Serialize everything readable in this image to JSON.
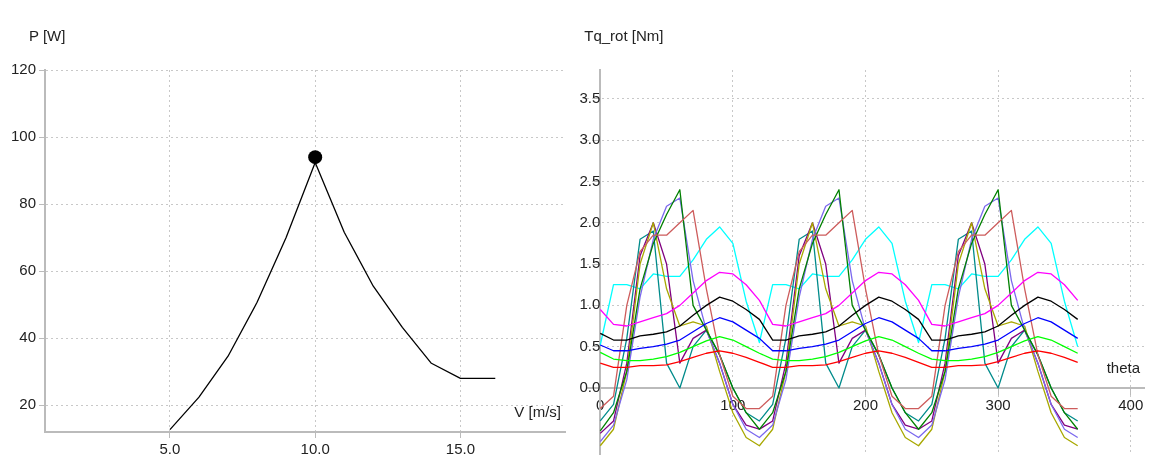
{
  "chart_data": [
    {
      "type": "line",
      "xlabel": "V [m/s]",
      "ylabel": "P [W]",
      "xlim": [
        0.7,
        18.6
      ],
      "ylim": [
        12,
        120
      ],
      "xticks": [
        {
          "value": 5,
          "label": "5.0"
        },
        {
          "value": 10,
          "label": "10.0"
        },
        {
          "value": 15,
          "label": "15.0"
        }
      ],
      "yticks": [
        20,
        40,
        60,
        80,
        100,
        120
      ],
      "grid": true,
      "legend": false,
      "marker": "none",
      "line_style": "solid",
      "x": [
        5,
        6,
        7,
        8,
        9,
        10,
        11,
        12,
        13,
        14,
        15,
        16.2
      ],
      "series": [
        {
          "color": "#000000",
          "values": [
            12.7,
            22.4,
            34.6,
            50.7,
            70,
            92.4,
            71.6,
            55.5,
            43.2,
            32.5,
            28,
            28
          ]
        },
        {
          "type": "scatter",
          "marker": "circle",
          "color": "#000000",
          "x": [
            10
          ],
          "values": [
            94
          ]
        }
      ]
    },
    {
      "type": "line",
      "xlabel": "theta",
      "ylabel": "Tq_rot [Nm]",
      "xlim": [
        -10,
        410
      ],
      "ylim": [
        -0.8,
        3.85
      ],
      "xticks": [
        0,
        100,
        200,
        300,
        400
      ],
      "yticks": [
        {
          "value": 0,
          "label": "0.0"
        },
        {
          "value": 0.5,
          "label": "0.5"
        },
        {
          "value": 1,
          "label": "1.0"
        },
        {
          "value": 1.5,
          "label": "1.5"
        },
        {
          "value": 2,
          "label": "2.0"
        },
        {
          "value": 2.5,
          "label": "2.5"
        },
        {
          "value": 3,
          "label": "3.0"
        },
        {
          "value": 3.5,
          "label": "3.5"
        }
      ],
      "grid": true,
      "legend": false,
      "marker": "none",
      "line_style": "solid",
      "x": [
        0,
        10,
        20,
        30,
        40,
        50,
        60,
        70,
        80,
        90,
        100,
        110,
        120,
        130,
        140,
        150,
        160,
        170,
        180,
        190,
        200,
        210,
        220,
        230,
        240,
        250,
        260,
        270,
        280,
        290,
        300,
        310,
        320,
        330,
        340,
        350,
        360
      ],
      "series": [
        {
          "color": "#ff0000",
          "values": [
            0.3,
            0.25,
            0.25,
            0.27,
            0.27,
            0.28,
            0.32,
            0.37,
            0.42,
            0.45,
            0.42,
            0.37,
            0.31,
            0.25,
            0.25,
            0.27,
            0.27,
            0.28,
            0.32,
            0.37,
            0.42,
            0.45,
            0.42,
            0.37,
            0.31,
            0.25,
            0.25,
            0.27,
            0.27,
            0.28,
            0.32,
            0.37,
            0.42,
            0.45,
            0.42,
            0.37,
            0.31
          ]
        },
        {
          "color": "#00ff00",
          "values": [
            0.43,
            0.35,
            0.33,
            0.33,
            0.35,
            0.38,
            0.43,
            0.5,
            0.57,
            0.62,
            0.58,
            0.5,
            0.42,
            0.35,
            0.33,
            0.33,
            0.35,
            0.38,
            0.43,
            0.5,
            0.57,
            0.62,
            0.58,
            0.5,
            0.42,
            0.35,
            0.33,
            0.33,
            0.35,
            0.38,
            0.43,
            0.5,
            0.57,
            0.62,
            0.58,
            0.5,
            0.42
          ]
        },
        {
          "color": "#0000ff",
          "values": [
            0.52,
            0.45,
            0.45,
            0.48,
            0.5,
            0.53,
            0.58,
            0.68,
            0.78,
            0.85,
            0.8,
            0.7,
            0.6,
            0.45,
            0.45,
            0.48,
            0.5,
            0.53,
            0.58,
            0.68,
            0.78,
            0.85,
            0.8,
            0.7,
            0.6,
            0.45,
            0.45,
            0.48,
            0.5,
            0.53,
            0.58,
            0.68,
            0.78,
            0.85,
            0.8,
            0.7,
            0.6
          ]
        },
        {
          "color": "#000000",
          "values": [
            0.66,
            0.58,
            0.58,
            0.63,
            0.65,
            0.68,
            0.75,
            0.88,
            1.0,
            1.1,
            1.05,
            0.95,
            0.83,
            0.58,
            0.58,
            0.63,
            0.65,
            0.68,
            0.75,
            0.88,
            1.0,
            1.1,
            1.05,
            0.95,
            0.83,
            0.58,
            0.58,
            0.63,
            0.65,
            0.68,
            0.75,
            0.88,
            1.0,
            1.1,
            1.05,
            0.95,
            0.83
          ]
        },
        {
          "color": "#ff00ff",
          "values": [
            0.95,
            0.77,
            0.75,
            0.8,
            0.85,
            0.9,
            1.0,
            1.15,
            1.3,
            1.4,
            1.38,
            1.25,
            1.06,
            0.77,
            0.75,
            0.8,
            0.85,
            0.9,
            1.0,
            1.15,
            1.3,
            1.4,
            1.38,
            1.25,
            1.06,
            0.77,
            0.75,
            0.8,
            0.85,
            0.9,
            1.0,
            1.15,
            1.3,
            1.4,
            1.38,
            1.25,
            1.06
          ]
        },
        {
          "color": "#cd5c5c",
          "values": [
            -0.25,
            -0.1,
            1.0,
            1.65,
            1.85,
            1.85,
            2.0,
            2.15,
            1.2,
            0.4,
            -0.1,
            -0.25,
            -0.25,
            -0.1,
            1.0,
            1.65,
            1.85,
            1.85,
            2.0,
            2.15,
            1.2,
            0.4,
            -0.1,
            -0.25,
            -0.25,
            -0.1,
            1.0,
            1.65,
            1.85,
            1.85,
            2.0,
            2.15,
            1.2,
            0.4,
            -0.1,
            -0.25,
            -0.25
          ]
        },
        {
          "color": "#008000",
          "values": [
            -0.52,
            -0.3,
            0.2,
            1.2,
            1.75,
            2.1,
            2.4,
            1.0,
            0.7,
            0.4,
            0.0,
            -0.3,
            -0.5,
            -0.3,
            0.2,
            1.2,
            1.75,
            2.1,
            2.4,
            1.0,
            0.7,
            0.4,
            0.0,
            -0.3,
            -0.5,
            -0.3,
            0.2,
            1.2,
            1.75,
            2.1,
            2.4,
            1.0,
            0.7,
            0.4,
            0.0,
            -0.3,
            -0.5
          ]
        },
        {
          "color": "#7b68ee",
          "values": [
            -0.65,
            -0.45,
            0.1,
            1.1,
            1.8,
            2.2,
            2.3,
            1.3,
            0.7,
            0.3,
            -0.2,
            -0.5,
            -0.6,
            -0.45,
            0.1,
            1.1,
            1.8,
            2.2,
            2.3,
            1.3,
            0.7,
            0.3,
            -0.2,
            -0.5,
            -0.6,
            -0.45,
            0.1,
            1.1,
            1.8,
            2.2,
            2.3,
            1.3,
            0.7,
            0.3,
            -0.2,
            -0.5,
            -0.6
          ]
        },
        {
          "color": "#a8a800",
          "values": [
            -0.7,
            -0.5,
            0.2,
            1.5,
            2.0,
            1.2,
            0.75,
            0.8,
            0.75,
            0.2,
            -0.3,
            -0.6,
            -0.7,
            -0.5,
            0.2,
            1.5,
            2.0,
            1.2,
            0.75,
            0.8,
            0.75,
            0.2,
            -0.3,
            -0.6,
            -0.7,
            -0.5,
            0.2,
            1.5,
            2.0,
            1.2,
            0.75,
            0.8,
            0.75,
            0.2,
            -0.3,
            -0.6,
            -0.7
          ]
        },
        {
          "color": "#800080",
          "values": [
            -0.55,
            -0.4,
            0.3,
            1.6,
            2.0,
            1.5,
            0.3,
            0.6,
            0.7,
            0.3,
            -0.2,
            -0.45,
            -0.5,
            -0.4,
            0.3,
            1.6,
            2.0,
            1.5,
            0.3,
            0.6,
            0.7,
            0.3,
            -0.2,
            -0.45,
            -0.5,
            -0.4,
            0.3,
            1.6,
            2.0,
            1.5,
            0.3,
            0.6,
            0.7,
            0.3,
            -0.2,
            -0.45,
            -0.5
          ]
        },
        {
          "color": "#008b8b",
          "values": [
            -0.4,
            -0.2,
            0.6,
            1.8,
            1.9,
            0.3,
            0.0,
            0.5,
            0.7,
            0.4,
            0.0,
            -0.3,
            -0.4,
            -0.2,
            0.6,
            1.8,
            1.9,
            0.3,
            0.0,
            0.5,
            0.7,
            0.4,
            0.0,
            -0.3,
            -0.4,
            -0.2,
            0.6,
            1.8,
            1.9,
            0.3,
            0.0,
            0.5,
            0.7,
            0.4,
            0.0,
            -0.3,
            -0.4
          ]
        },
        {
          "color": "#00ffff",
          "values": [
            0.52,
            1.25,
            1.25,
            1.2,
            1.38,
            1.35,
            1.35,
            1.55,
            1.8,
            1.95,
            1.75,
            1.05,
            0.55,
            1.25,
            1.25,
            1.2,
            1.38,
            1.35,
            1.35,
            1.55,
            1.8,
            1.95,
            1.75,
            1.05,
            0.55,
            1.25,
            1.25,
            1.2,
            1.38,
            1.35,
            1.35,
            1.55,
            1.8,
            1.95,
            1.75,
            1.05,
            0.5
          ]
        }
      ]
    }
  ]
}
